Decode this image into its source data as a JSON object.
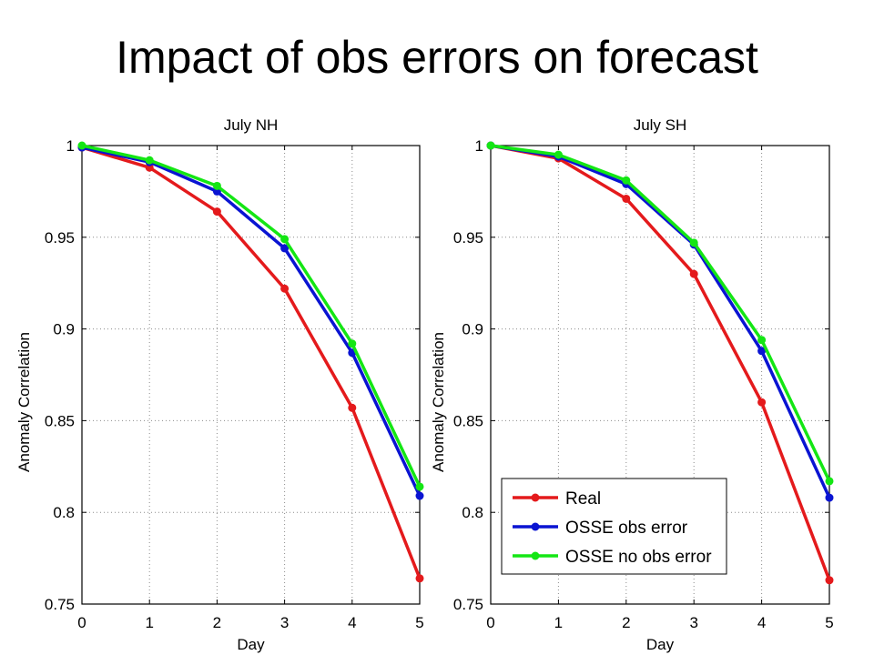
{
  "slide": {
    "title": "Impact of obs errors on forecast"
  },
  "colors": {
    "real": "#e41a1c",
    "osse_obs_error": "#0a14d2",
    "osse_no_obs_error": "#14e614",
    "grid": "#8c8c8c",
    "axis": "#000000"
  },
  "chart_data": [
    {
      "type": "line",
      "title": "July NH",
      "xlabel": "Day",
      "ylabel": "Anomaly Correlation",
      "x": [
        0,
        1,
        2,
        3,
        4,
        5
      ],
      "xlim": [
        0,
        5
      ],
      "ylim": [
        0.75,
        1
      ],
      "xticks": [
        "0",
        "1",
        "2",
        "3",
        "4",
        "5"
      ],
      "yticks": [
        "0.75",
        "0.8",
        "0.85",
        "0.9",
        "0.95",
        "1"
      ],
      "grid": true,
      "legend": null,
      "series": [
        {
          "name": "Real",
          "color": "#e41a1c",
          "values": [
            0.999,
            0.988,
            0.964,
            0.922,
            0.857,
            0.764
          ]
        },
        {
          "name": "OSSE obs error",
          "color": "#0a14d2",
          "values": [
            0.999,
            0.991,
            0.975,
            0.944,
            0.887,
            0.809
          ]
        },
        {
          "name": "OSSE no obs error",
          "color": "#14e614",
          "values": [
            1.0,
            0.992,
            0.978,
            0.949,
            0.892,
            0.814
          ]
        }
      ]
    },
    {
      "type": "line",
      "title": "July SH",
      "xlabel": "Day",
      "ylabel": "Anomaly Correlation",
      "x": [
        0,
        1,
        2,
        3,
        4,
        5
      ],
      "xlim": [
        0,
        5
      ],
      "ylim": [
        0.75,
        1
      ],
      "xticks": [
        "0",
        "1",
        "2",
        "3",
        "4",
        "5"
      ],
      "yticks": [
        "0.75",
        "0.8",
        "0.85",
        "0.9",
        "0.95",
        "1"
      ],
      "grid": true,
      "legend": "bottom-left",
      "series": [
        {
          "name": "Real",
          "color": "#e41a1c",
          "values": [
            1.0,
            0.993,
            0.971,
            0.93,
            0.86,
            0.763
          ]
        },
        {
          "name": "OSSE obs error",
          "color": "#0a14d2",
          "values": [
            1.0,
            0.994,
            0.979,
            0.946,
            0.888,
            0.808
          ]
        },
        {
          "name": "OSSE no obs error",
          "color": "#14e614",
          "values": [
            1.0,
            0.995,
            0.981,
            0.947,
            0.894,
            0.817
          ]
        }
      ]
    }
  ]
}
